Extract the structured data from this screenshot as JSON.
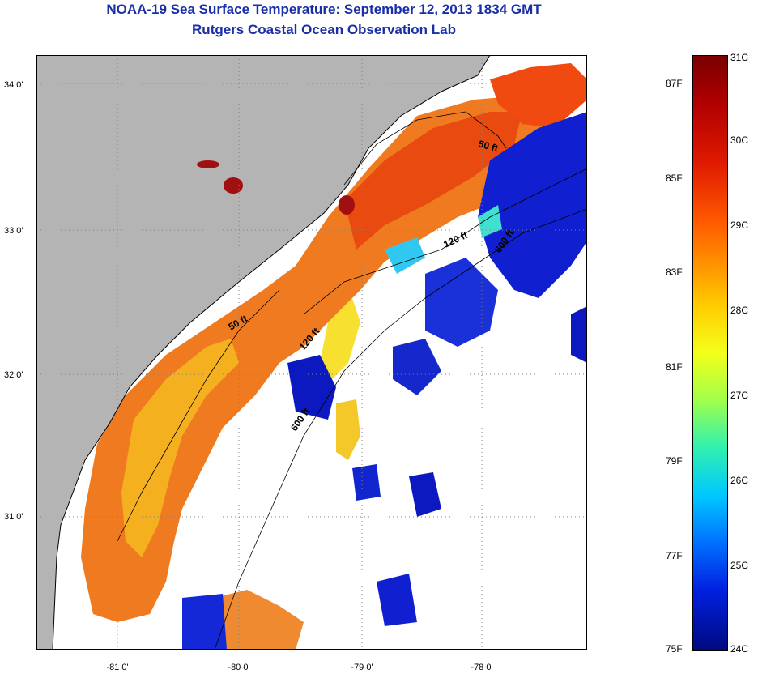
{
  "title": {
    "line1": "NOAA-19 Sea Surface Temperature:  September 12, 2013 1834 GMT",
    "line2": "Rutgers Coastal Ocean Observation Lab"
  },
  "map": {
    "lat_labels": [
      "34 0'",
      "33 0'",
      "32 0'",
      "31 0'"
    ],
    "lon_labels": [
      "-81 0'",
      "-80 0'",
      "-79 0'",
      "-78 0'"
    ],
    "contour_labels": [
      "50 ft",
      "50 ft",
      "120 ft",
      "120 ft",
      "600 ft",
      "600 ft"
    ],
    "colors": {
      "land": "#b4b4b4",
      "cloud": "#ffffff",
      "coastline": "#000000"
    }
  },
  "colorbar": {
    "celsius": [
      "31C",
      "30C",
      "29C",
      "28C",
      "27C",
      "26C",
      "25C",
      "24C"
    ],
    "fahrenheit": [
      "87F",
      "85F",
      "83F",
      "81F",
      "79F",
      "77F",
      "75F"
    ]
  }
}
